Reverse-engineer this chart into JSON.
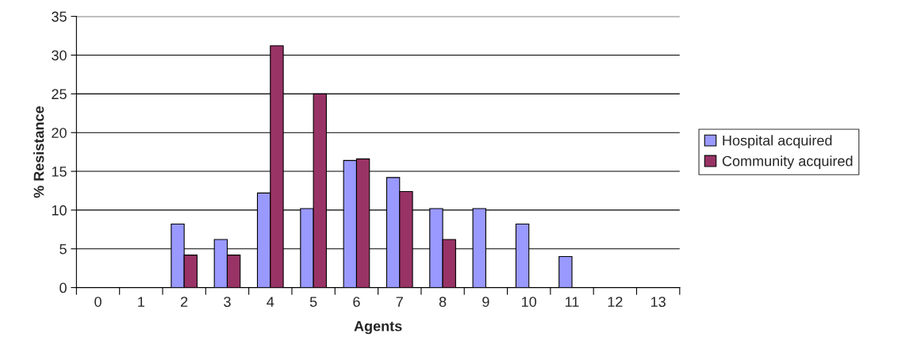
{
  "chart_data": {
    "type": "bar",
    "xlabel": "Agents",
    "ylabel": "% Resistance",
    "categories": [
      "0",
      "1",
      "2",
      "3",
      "4",
      "5",
      "6",
      "7",
      "8",
      "9",
      "10",
      "11",
      "12",
      "13"
    ],
    "series": [
      {
        "name": "Hospital acquired",
        "color": "#9999ff",
        "values": [
          null,
          null,
          8.2,
          6.2,
          12.2,
          10.2,
          16.4,
          14.2,
          10.2,
          10.2,
          8.2,
          4,
          null,
          null
        ]
      },
      {
        "name": "Community acquired",
        "color": "#993366",
        "values": [
          null,
          null,
          4.2,
          4.2,
          31.2,
          25,
          16.6,
          12.4,
          6.2,
          null,
          null,
          null,
          null,
          null
        ]
      }
    ],
    "ylim": [
      0,
      35
    ],
    "yticks": [
      0,
      5,
      10,
      15,
      20,
      25,
      30,
      35
    ],
    "grid": "y",
    "legend": "right"
  }
}
